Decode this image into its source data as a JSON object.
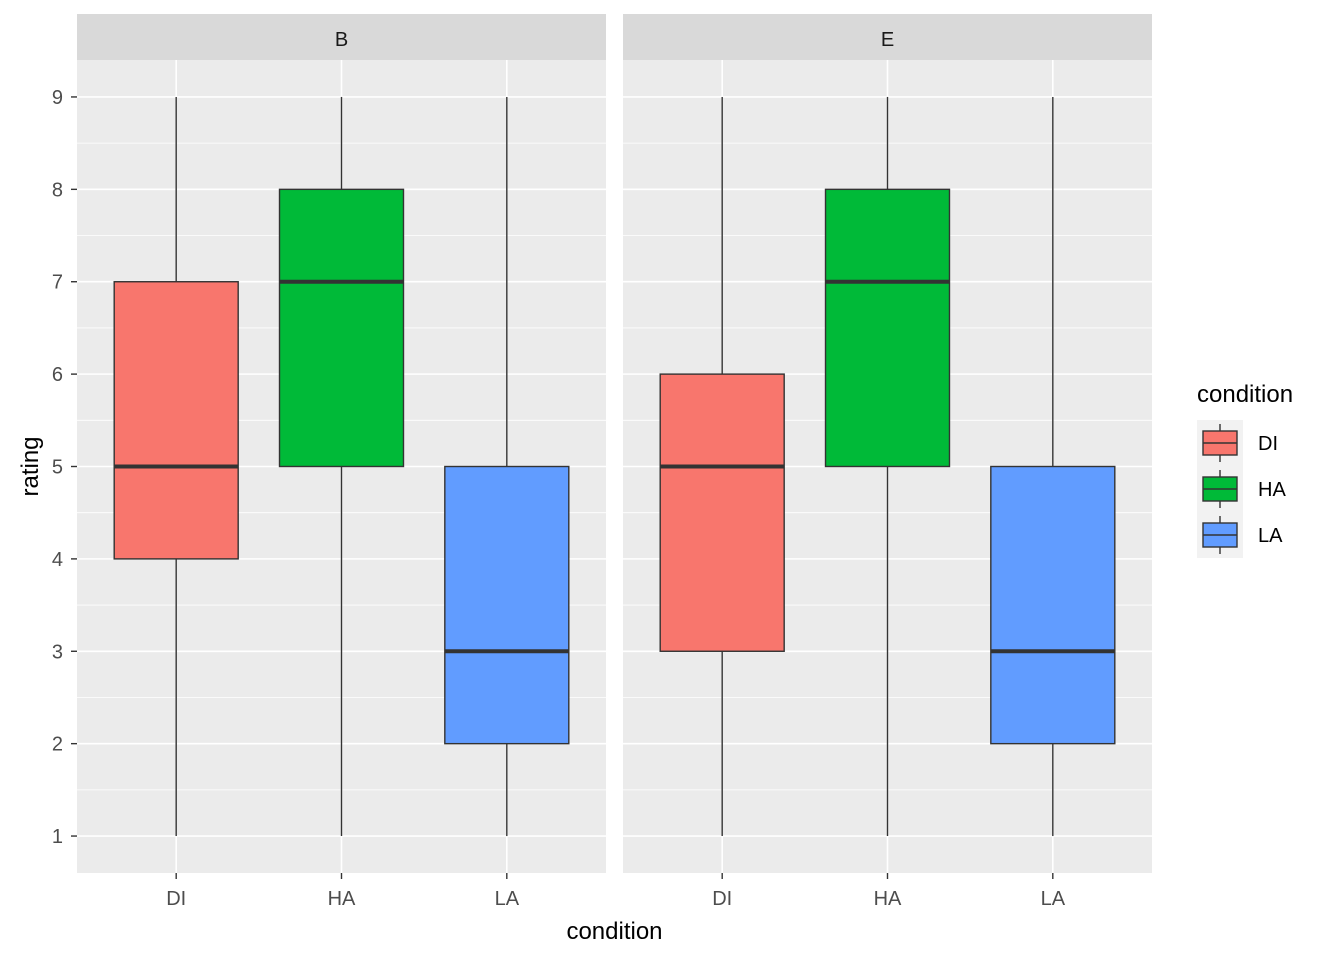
{
  "chart_data": {
    "type": "boxplot",
    "xlabel": "condition",
    "ylabel": "rating",
    "ylim": [
      0.6,
      9.4
    ],
    "y_ticks": [
      1,
      2,
      3,
      4,
      5,
      6,
      7,
      8,
      9
    ],
    "categories": [
      "DI",
      "HA",
      "LA"
    ],
    "grid": true,
    "legend": {
      "title": "condition",
      "position": "right",
      "items": [
        {
          "label": "DI",
          "color": "#F8766D"
        },
        {
          "label": "HA",
          "color": "#00BA38"
        },
        {
          "label": "LA",
          "color": "#619CFF"
        }
      ]
    },
    "facets": [
      {
        "label": "B",
        "boxes": [
          {
            "category": "DI",
            "min": 1,
            "q1": 4,
            "median": 5,
            "q3": 7,
            "max": 9
          },
          {
            "category": "HA",
            "min": 1,
            "q1": 5,
            "median": 7,
            "q3": 8,
            "max": 9
          },
          {
            "category": "LA",
            "min": 1,
            "q1": 2,
            "median": 3,
            "q3": 5,
            "max": 9
          }
        ]
      },
      {
        "label": "E",
        "boxes": [
          {
            "category": "DI",
            "min": 1,
            "q1": 3,
            "median": 5,
            "q3": 6,
            "max": 9
          },
          {
            "category": "HA",
            "min": 1,
            "q1": 5,
            "median": 7,
            "q3": 8,
            "max": 9
          },
          {
            "category": "LA",
            "min": 1,
            "q1": 2,
            "median": 3,
            "q3": 5,
            "max": 9
          }
        ]
      }
    ],
    "colors": {
      "DI": "#F8766D",
      "HA": "#00BA38",
      "LA": "#619CFF",
      "panel_background": "#EBEBEB",
      "strip_background": "#D9D9D9",
      "grid": "#FFFFFF",
      "outline": "#333333"
    }
  }
}
